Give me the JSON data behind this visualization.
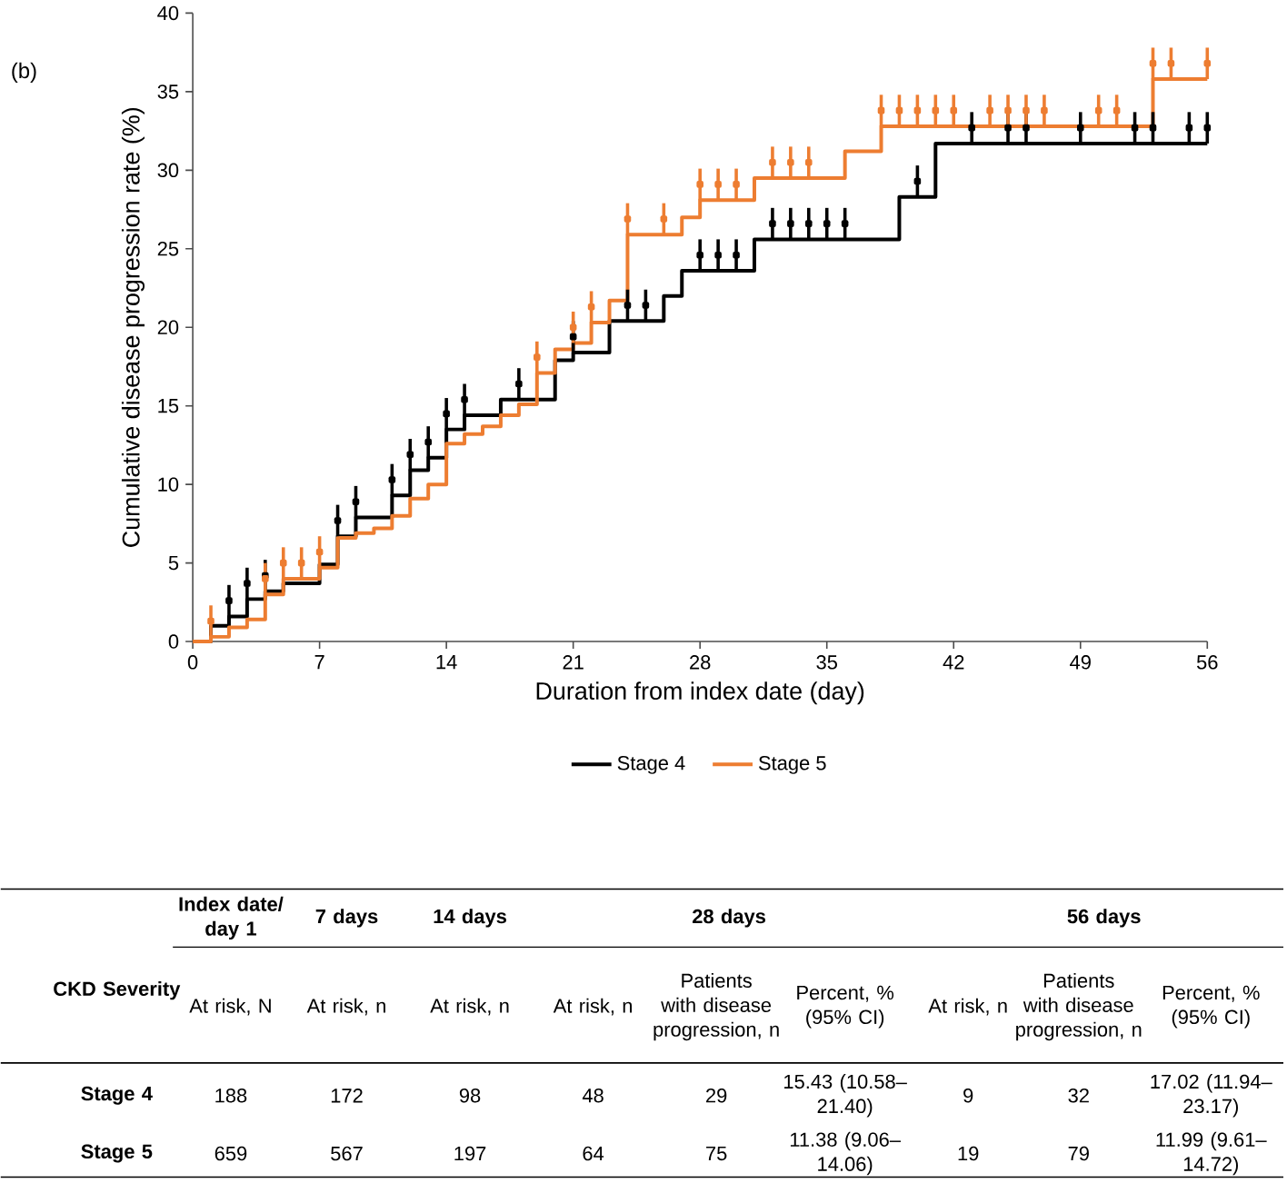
{
  "chart_data": {
    "type": "step",
    "title": "(b)",
    "xlabel": "Duration from index date (day)",
    "ylabel": "Cumulative disease progression rate (%)",
    "xlim": [
      0,
      56
    ],
    "ylim": [
      0,
      40
    ],
    "xticks": [
      0,
      7,
      14,
      21,
      28,
      35,
      42,
      49,
      56
    ],
    "yticks": [
      0,
      5,
      10,
      15,
      20,
      25,
      30,
      35,
      40
    ],
    "legend": "bottom",
    "series": [
      {
        "name": "Stage 4",
        "color": "#000000",
        "type": "step",
        "x": [
          0,
          1,
          2,
          3,
          4,
          5,
          7,
          8,
          9,
          11,
          12,
          13,
          14,
          15,
          17,
          20,
          21,
          23,
          26,
          27,
          31,
          39,
          41,
          56
        ],
        "values": [
          0,
          1.0,
          1.6,
          2.7,
          3.2,
          3.7,
          4.9,
          6.7,
          7.9,
          9.3,
          10.9,
          11.7,
          13.5,
          14.4,
          15.4,
          17.9,
          18.4,
          20.4,
          22.0,
          23.6,
          25.6,
          28.3,
          31.7,
          31.7
        ]
      },
      {
        "name": "Stage 5",
        "color": "#ed7d31",
        "type": "step",
        "x": [
          0,
          1,
          2,
          3,
          4,
          5,
          7,
          8,
          9,
          10,
          11,
          12,
          13,
          14,
          15,
          16,
          17,
          18,
          19,
          20,
          21,
          22,
          23,
          24,
          27,
          28,
          31,
          36,
          38,
          53,
          56
        ],
        "values": [
          0,
          0.3,
          0.9,
          1.4,
          3.0,
          4.0,
          4.7,
          6.6,
          6.9,
          7.2,
          8.0,
          9.1,
          10.0,
          12.6,
          13.2,
          13.7,
          14.4,
          15.1,
          17.1,
          18.6,
          19.0,
          20.3,
          21.7,
          25.9,
          27.0,
          28.1,
          29.5,
          31.2,
          32.8,
          35.8,
          35.8
        ]
      },
      {
        "color": "#000000",
        "type": "scatter",
        "marker": "square",
        "errors": [
          1,
          1,
          1,
          1,
          1,
          1,
          1,
          1,
          1,
          1,
          1,
          1,
          1,
          1,
          1,
          1,
          1,
          1,
          1,
          1,
          1,
          1,
          1,
          1,
          1,
          1,
          1,
          1,
          1,
          1,
          1
        ],
        "x": [
          2,
          3,
          4,
          8,
          9,
          11,
          12,
          13,
          14,
          15,
          18,
          21,
          24,
          25,
          28,
          29,
          30,
          32,
          33,
          34,
          35,
          36,
          40,
          43,
          45,
          46,
          49,
          52,
          53,
          55,
          56
        ],
        "values": [
          2.6,
          3.7,
          4.2,
          7.7,
          8.9,
          10.3,
          11.9,
          12.7,
          14.5,
          15.4,
          16.4,
          19.4,
          21.4,
          21.4,
          24.6,
          24.6,
          24.6,
          26.6,
          26.6,
          26.6,
          26.6,
          26.6,
          29.3,
          32.7,
          32.7,
          32.7,
          32.7,
          32.7,
          32.7,
          32.7,
          32.7
        ]
      },
      {
        "color": "#ed7d31",
        "type": "scatter",
        "marker": "square",
        "errors": [
          1,
          1,
          1,
          1,
          1,
          1,
          1,
          1,
          1,
          1,
          1,
          1,
          1,
          1,
          1,
          1,
          1,
          1,
          1,
          1,
          1,
          1,
          1,
          1,
          1,
          1,
          1,
          1,
          1,
          1
        ],
        "x": [
          1,
          4,
          5,
          6,
          7,
          19,
          21,
          22,
          24,
          26,
          28,
          29,
          30,
          32,
          33,
          34,
          38,
          39,
          40,
          41,
          42,
          44,
          45,
          46,
          47,
          50,
          51,
          53,
          54,
          56
        ],
        "values": [
          1.3,
          4.0,
          5.0,
          5.0,
          5.7,
          18.1,
          20.0,
          21.3,
          26.9,
          26.9,
          29.1,
          29.1,
          29.1,
          30.5,
          30.5,
          30.5,
          33.8,
          33.8,
          33.8,
          33.8,
          33.8,
          33.8,
          33.8,
          33.8,
          33.8,
          33.8,
          33.8,
          36.8,
          36.8,
          36.8
        ]
      }
    ],
    "annotations": [
      "CKD Severity",
      "Index date/ day 1",
      "7 days",
      "14 days",
      "28 days",
      "56 days",
      "At risk, N",
      "At risk, n",
      "At risk, n",
      "At risk, n",
      "Patients with disease progression, n",
      "Percent, % (95% CI)",
      "At risk, n",
      "Patients with disease progression, n",
      "Percent, % (95% CI)",
      "Stage 4",
      "188",
      "172",
      "98",
      "48",
      "29",
      "15.43 (10.58–21.40)",
      "9",
      "32",
      "17.02 (11.94–23.17)",
      "Stage 5",
      "659",
      "567",
      "197",
      "64",
      "75",
      "11.38 (9.06–14.06)",
      "19",
      "79",
      "11.99 (9.61–14.72)"
    ]
  }
}
